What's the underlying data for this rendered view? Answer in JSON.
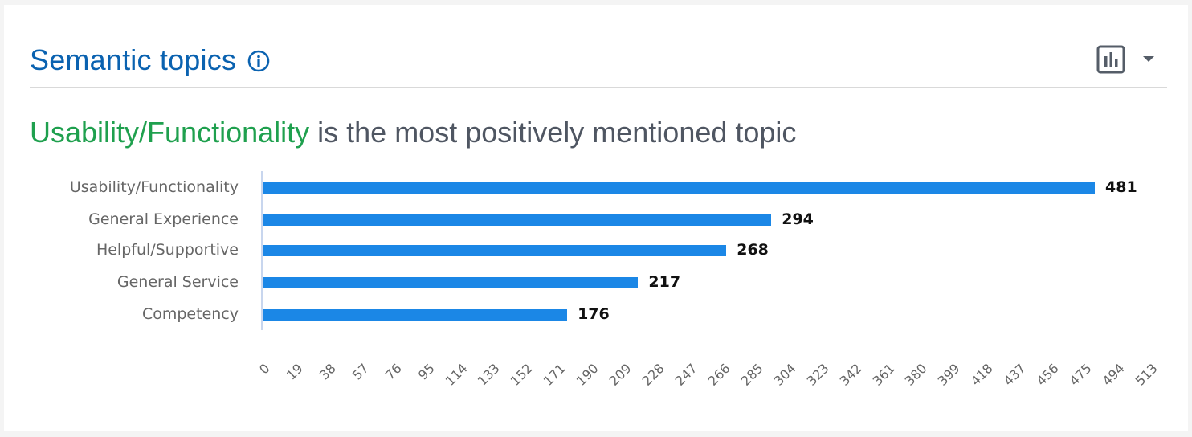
{
  "widget": {
    "title": "Semantic topics",
    "info_icon": "info-circle-icon",
    "chart_type_icon": "bar-chart-icon",
    "dropdown_icon": "caret-down-icon"
  },
  "headline": {
    "highlight": "Usability/Functionality",
    "rest": " is the most positively mentioned topic",
    "highlight_color": "#1fa04e"
  },
  "colors": {
    "title": "#0a62b0",
    "bar": "#1b87e6",
    "axis": "#c8d6ee",
    "text_gray": "#666666"
  },
  "chart_data": {
    "type": "bar",
    "orientation": "horizontal",
    "title": "Usability/Functionality is the most positively mentioned topic",
    "xlabel": "",
    "ylabel": "",
    "categories": [
      "Usability/Functionality",
      "General Experience",
      "Helpful/Supportive",
      "General Service",
      "Competency"
    ],
    "values": [
      481,
      294,
      268,
      217,
      176
    ],
    "data_labels": [
      "481",
      "294",
      "268",
      "217",
      "176"
    ],
    "xlim": [
      0,
      513
    ],
    "x_ticks": [
      "0",
      "19",
      "38",
      "57",
      "76",
      "95",
      "114",
      "133",
      "152",
      "171",
      "190",
      "209",
      "228",
      "247",
      "266",
      "285",
      "304",
      "323",
      "342",
      "361",
      "380",
      "399",
      "418",
      "437",
      "456",
      "475",
      "494",
      "513"
    ],
    "grid": false,
    "legend": null
  }
}
